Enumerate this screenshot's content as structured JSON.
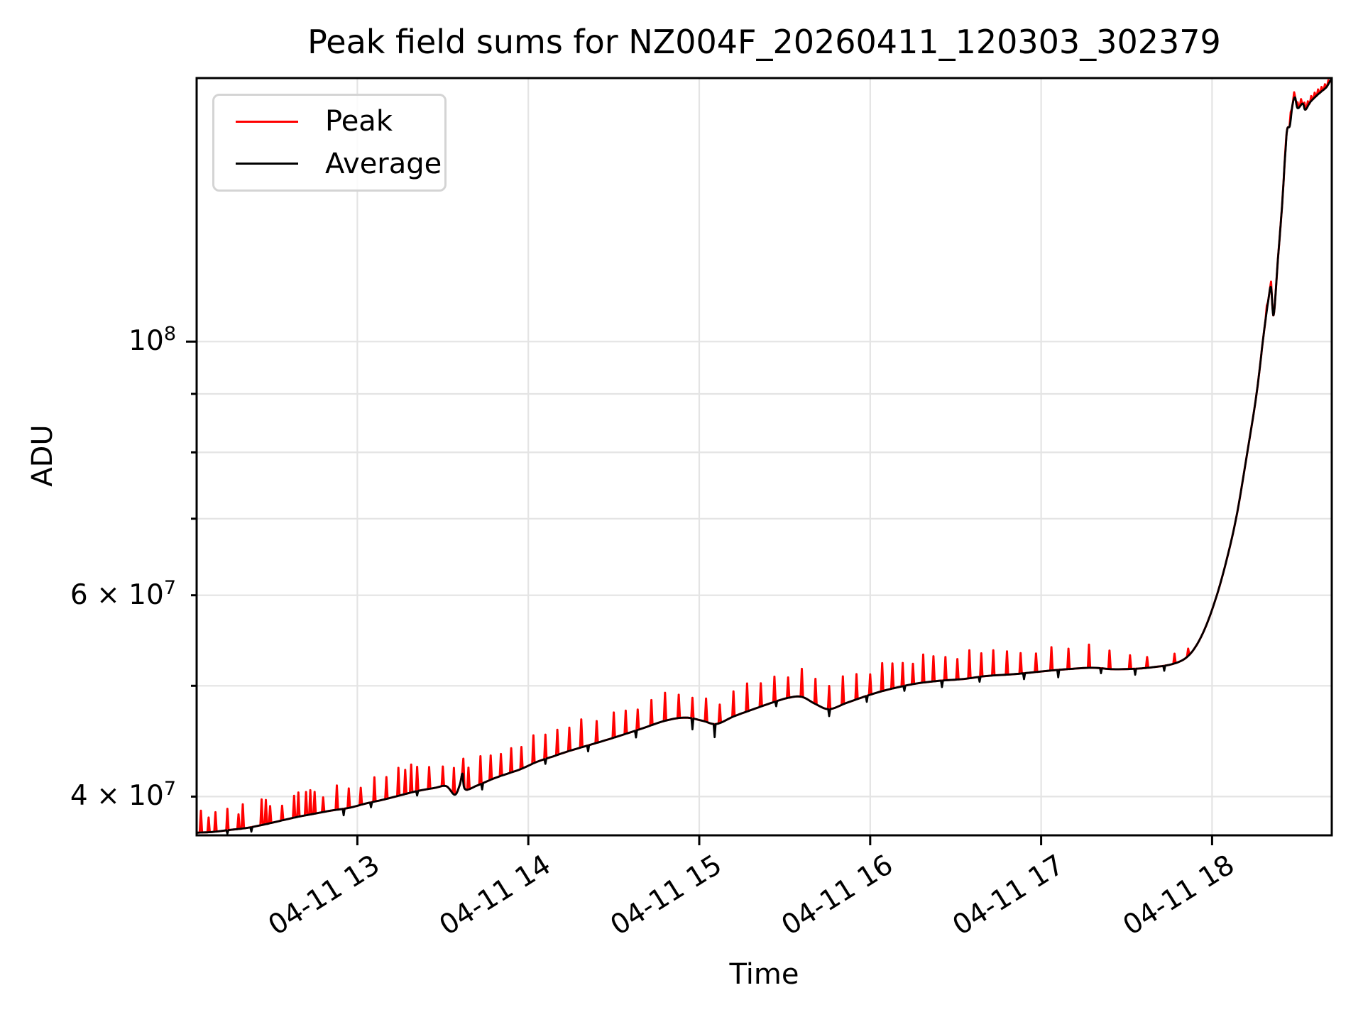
{
  "page": {
    "background": "#ffffff"
  },
  "title": "Peak field sums for NZ004F_20260411_120303_302379",
  "legend": {
    "position": "upper left",
    "items": [
      {
        "label": "Peak",
        "color": "#ff0000"
      },
      {
        "label": "Average",
        "color": "#000000"
      }
    ]
  },
  "chart_data": {
    "type": "line",
    "title": "Peak field sums for NZ004F_20260411_120303_302379",
    "xlabel": "Time",
    "ylabel": "ADU",
    "yscale": "log",
    "legend_position": "upper left",
    "x_hours_range": [
      12.06,
      18.7
    ],
    "ylim": [
      37000000.0,
      170000000.0
    ],
    "x_tick_hours": [
      13,
      14,
      15,
      16,
      17,
      18
    ],
    "x_tick_labels": [
      "04-11 13",
      "04-11 14",
      "04-11 15",
      "04-11 16",
      "04-11 17",
      "04-11 18"
    ],
    "y_tick_labels": [
      {
        "value": 40000000.0,
        "base": "4 × 10",
        "exp": "7",
        "label": "4 × 10^7"
      },
      {
        "value": 60000000.0,
        "base": "6 × 10",
        "exp": "7",
        "label": "6 × 10^7"
      },
      {
        "value": 100000000.0,
        "base": "10",
        "exp": "8",
        "label": "10^8"
      }
    ],
    "grid": {
      "color": "#e4e4e4",
      "horizontal_values": [
        40000000.0,
        50000000.0,
        60000000.0,
        70000000.0,
        80000000.0,
        90000000.0,
        100000000.0
      ],
      "vertical_hours": [
        13,
        14,
        15,
        16,
        17,
        18
      ]
    },
    "series": [
      {
        "name": "Peak",
        "color": "#ff0000",
        "derived_from": "Average",
        "spikes_t_ratio": [
          [
            12.085,
            1.045
          ],
          [
            12.13,
            1.03
          ],
          [
            12.17,
            1.04
          ],
          [
            12.24,
            1.044
          ],
          [
            12.305,
            1.03
          ],
          [
            12.33,
            1.05
          ],
          [
            12.44,
            1.053
          ],
          [
            12.465,
            1.05
          ],
          [
            12.49,
            1.035
          ],
          [
            12.56,
            1.03
          ],
          [
            12.63,
            1.045
          ],
          [
            12.655,
            1.05
          ],
          [
            12.7,
            1.048
          ],
          [
            12.725,
            1.05
          ],
          [
            12.75,
            1.045
          ],
          [
            12.8,
            1.03
          ],
          [
            12.88,
            1.05
          ],
          [
            12.95,
            1.04
          ],
          [
            13.02,
            1.035
          ],
          [
            13.1,
            1.05
          ],
          [
            13.17,
            1.045
          ],
          [
            13.24,
            1.058
          ],
          [
            13.28,
            1.05
          ],
          [
            13.315,
            1.058
          ],
          [
            13.35,
            1.05
          ],
          [
            13.42,
            1.045
          ],
          [
            13.5,
            1.04
          ],
          [
            13.565,
            1.055
          ],
          [
            13.62,
            1.05
          ],
          [
            13.65,
            1.045
          ],
          [
            13.72,
            1.058
          ],
          [
            13.78,
            1.05
          ],
          [
            13.84,
            1.045
          ],
          [
            13.9,
            1.05
          ],
          [
            13.96,
            1.045
          ],
          [
            14.03,
            1.058
          ],
          [
            14.1,
            1.05
          ],
          [
            14.17,
            1.052
          ],
          [
            14.24,
            1.048
          ],
          [
            14.31,
            1.058
          ],
          [
            14.4,
            1.045
          ],
          [
            14.5,
            1.052
          ],
          [
            14.57,
            1.048
          ],
          [
            14.64,
            1.042
          ],
          [
            14.72,
            1.052
          ],
          [
            14.8,
            1.058
          ],
          [
            14.88,
            1.048
          ],
          [
            14.96,
            1.042
          ],
          [
            15.04,
            1.048
          ],
          [
            15.12,
            1.038
          ],
          [
            15.2,
            1.052
          ],
          [
            15.28,
            1.058
          ],
          [
            15.36,
            1.048
          ],
          [
            15.44,
            1.052
          ],
          [
            15.52,
            1.042
          ],
          [
            15.6,
            1.058
          ],
          [
            15.68,
            1.052
          ],
          [
            15.76,
            1.048
          ],
          [
            15.84,
            1.058
          ],
          [
            15.92,
            1.052
          ],
          [
            16.0,
            1.042
          ],
          [
            16.07,
            1.058
          ],
          [
            16.13,
            1.052
          ],
          [
            16.19,
            1.048
          ],
          [
            16.25,
            1.042
          ],
          [
            16.31,
            1.058
          ],
          [
            16.37,
            1.052
          ],
          [
            16.44,
            1.048
          ],
          [
            16.51,
            1.042
          ],
          [
            16.58,
            1.058
          ],
          [
            16.65,
            1.048
          ],
          [
            16.72,
            1.052
          ],
          [
            16.8,
            1.048
          ],
          [
            16.88,
            1.042
          ],
          [
            16.97,
            1.038
          ],
          [
            17.06,
            1.048
          ],
          [
            17.16,
            1.042
          ],
          [
            17.28,
            1.048
          ],
          [
            17.4,
            1.038
          ],
          [
            17.52,
            1.028
          ],
          [
            17.62,
            1.022
          ],
          [
            17.78,
            1.02
          ],
          [
            17.86,
            1.015
          ],
          [
            18.32,
            1.01
          ],
          [
            18.345,
            1.012
          ],
          [
            18.46,
            1.015
          ],
          [
            18.48,
            1.012
          ],
          [
            18.5,
            1.012
          ],
          [
            18.52,
            1.012
          ],
          [
            18.54,
            1.012
          ],
          [
            18.56,
            1.01
          ],
          [
            18.58,
            1.01
          ],
          [
            18.6,
            1.01
          ],
          [
            18.62,
            1.01
          ],
          [
            18.64,
            1.009
          ],
          [
            18.66,
            1.009
          ],
          [
            18.68,
            1.008
          ]
        ]
      },
      {
        "name": "Average",
        "color": "#000000",
        "points_t_adu": [
          [
            12.06,
            37200000.0
          ],
          [
            12.15,
            37250000.0
          ],
          [
            12.25,
            37400000.0
          ],
          [
            12.35,
            37550000.0
          ],
          [
            12.45,
            37800000.0
          ],
          [
            12.55,
            38100000.0
          ],
          [
            12.65,
            38400000.0
          ],
          [
            12.75,
            38650000.0
          ],
          [
            12.85,
            38900000.0
          ],
          [
            12.95,
            39100000.0
          ],
          [
            13.05,
            39450000.0
          ],
          [
            13.15,
            39750000.0
          ],
          [
            13.25,
            40100000.0
          ],
          [
            13.35,
            40450000.0
          ],
          [
            13.45,
            40700000.0
          ],
          [
            13.52,
            40850000.0
          ],
          [
            13.57,
            40150000.0
          ],
          [
            13.6,
            41000000.0
          ],
          [
            13.615,
            41900000.0
          ],
          [
            13.63,
            40600000.0
          ],
          [
            13.7,
            40900000.0
          ],
          [
            13.8,
            41500000.0
          ],
          [
            13.88,
            41900000.0
          ],
          [
            13.96,
            42300000.0
          ],
          [
            14.05,
            42900000.0
          ],
          [
            14.15,
            43400000.0
          ],
          [
            14.25,
            43900000.0
          ],
          [
            14.45,
            44800000.0
          ],
          [
            14.65,
            45800000.0
          ],
          [
            14.8,
            46600000.0
          ],
          [
            14.92,
            46900000.0
          ],
          [
            15.02,
            46600000.0
          ],
          [
            15.1,
            46300000.0
          ],
          [
            15.2,
            47000000.0
          ],
          [
            15.3,
            47600000.0
          ],
          [
            15.42,
            48300000.0
          ],
          [
            15.52,
            48800000.0
          ],
          [
            15.6,
            48900000.0
          ],
          [
            15.68,
            48200000.0
          ],
          [
            15.76,
            47700000.0
          ],
          [
            15.86,
            48300000.0
          ],
          [
            15.98,
            49000000.0
          ],
          [
            16.1,
            49600000.0
          ],
          [
            16.26,
            50200000.0
          ],
          [
            16.4,
            50500000.0
          ],
          [
            16.55,
            50700000.0
          ],
          [
            16.68,
            51000000.0
          ],
          [
            16.85,
            51200000.0
          ],
          [
            17.02,
            51500000.0
          ],
          [
            17.15,
            51700000.0
          ],
          [
            17.3,
            51850000.0
          ],
          [
            17.42,
            51700000.0
          ],
          [
            17.55,
            51750000.0
          ],
          [
            17.65,
            51900000.0
          ],
          [
            17.76,
            52200000.0
          ],
          [
            17.84,
            52800000.0
          ],
          [
            17.9,
            54000000.0
          ],
          [
            17.96,
            56200000.0
          ],
          [
            18.02,
            59500000.0
          ],
          [
            18.08,
            64000000.0
          ],
          [
            18.14,
            70000000.0
          ],
          [
            18.2,
            79000000.0
          ],
          [
            18.26,
            90000000.0
          ],
          [
            18.3,
            101000000.0
          ],
          [
            18.33,
            109000000.0
          ],
          [
            18.345,
            111500000.0
          ],
          [
            18.36,
            105500000.0
          ],
          [
            18.385,
            118000000.0
          ],
          [
            18.41,
            132000000.0
          ],
          [
            18.43,
            148000000.0
          ],
          [
            18.44,
            153500000.0
          ],
          [
            18.455,
            154500000.0
          ],
          [
            18.47,
            161000000.0
          ],
          [
            18.485,
            163500000.0
          ],
          [
            18.5,
            160000000.0
          ],
          [
            18.53,
            161500000.0
          ],
          [
            18.545,
            159500000.0
          ],
          [
            18.575,
            162000000.0
          ],
          [
            18.61,
            164000000.0
          ],
          [
            18.64,
            165500000.0
          ],
          [
            18.67,
            167000000.0
          ],
          [
            18.695,
            169500000.0
          ]
        ],
        "dips_t_ratio": [
          [
            12.24,
            0.993
          ],
          [
            12.38,
            0.991
          ],
          [
            12.92,
            0.987
          ],
          [
            13.08,
            0.99
          ],
          [
            13.35,
            0.991
          ],
          [
            13.73,
            0.988
          ],
          [
            14.1,
            0.99
          ],
          [
            14.35,
            0.988
          ],
          [
            14.63,
            0.986
          ],
          [
            14.96,
            0.978
          ],
          [
            15.09,
            0.974
          ],
          [
            15.45,
            0.99
          ],
          [
            15.76,
            0.986
          ],
          [
            15.98,
            0.988
          ],
          [
            16.2,
            0.99
          ],
          [
            16.42,
            0.987
          ],
          [
            16.64,
            0.99
          ],
          [
            16.9,
            0.988
          ],
          [
            17.1,
            0.985
          ],
          [
            17.35,
            0.99
          ],
          [
            17.55,
            0.988
          ],
          [
            17.72,
            0.99
          ],
          [
            18.43,
            0.995
          ]
        ]
      }
    ]
  }
}
